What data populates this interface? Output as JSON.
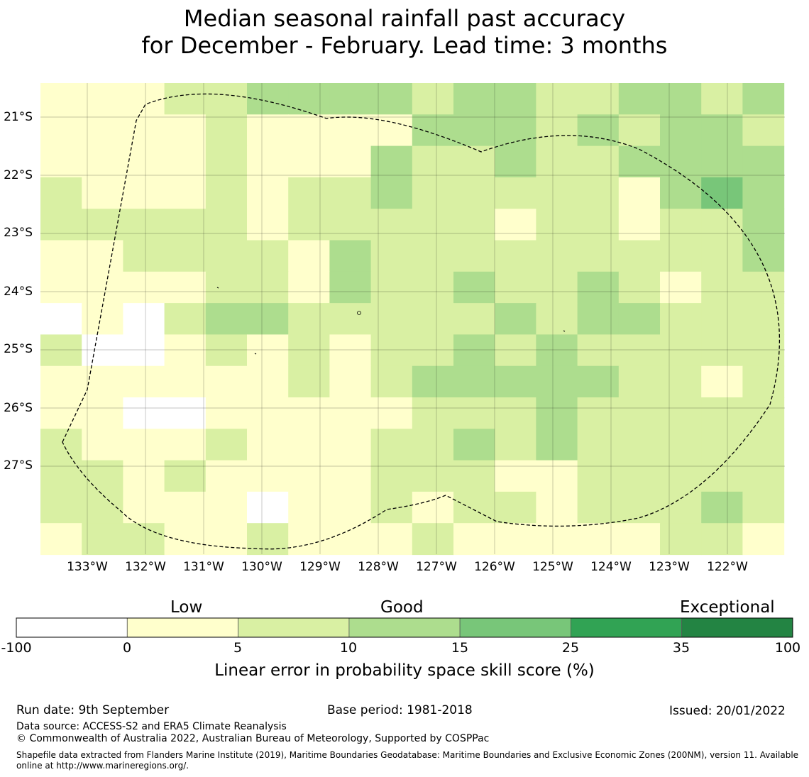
{
  "title": {
    "line1": "Median seasonal rainfall past accuracy",
    "line2": "for December - February. Lead time: 3 months"
  },
  "map": {
    "lat_labels": [
      "21°S",
      "22°S",
      "23°S",
      "24°S",
      "25°S",
      "26°S",
      "27°S"
    ],
    "lon_labels": [
      "133°W",
      "132°W",
      "131°W",
      "130°W",
      "129°W",
      "128°W",
      "127°W",
      "126°W",
      "125°W",
      "124°W",
      "123°W",
      "122°W"
    ],
    "grid_rows": [
      "1 1 1 2 2 3 3 3 3 2 3 3 2 2 3 3 2 3",
      "1 1 1 1 2 1 1 1 1 3 3 3 2 3 2 3 3 2",
      "1 1 1 1 2 1 1 1 3 2 2 3 2 2 3 3 3 3",
      "2 1 1 1 2 1 2 2 3 2 2 2 2 2 1 3 4 3",
      "2 2 2 2 2 1 2 2 2 2 2 1 2 2 1 2 2 3",
      "1 1 2 2 2 2 1 3 2 2 2 2 2 2 2 2 2 3",
      "1 1 1 1 2 2 1 3 2 2 3 2 2 3 2 1 2 2",
      "0 1 0 2 3 3 2 2 2 2 2 3 2 3 3 2 2 2",
      "2 0 0 1 2 1 2 1 2 2 3 2 3 2 2 2 2 2",
      "1 1 1 1 1 1 2 1 2 3 3 3 3 3 2 2 1 2",
      "1 1 0 0 1 1 1 1 1 2 2 2 3 2 2 2 2 2",
      "2 1 1 1 2 1 1 1 2 2 3 2 3 2 2 2 2 2",
      "2 2 1 2 1 1 1 1 2 2 2 1 1 2 2 2 2 2",
      "2 2 1 1 1 0 1 1 2 1 2 2 1 2 2 2 3 2",
      "1 2 2 1 1 2 1 1 1 2 1 1 1 1 1 2 2 1"
    ],
    "grid_last_row_note": "",
    "color_map": {
      "0": "#ffffff",
      "1": "#ffffcc",
      "2": "#d9f0a3",
      "3": "#addd8e",
      "4": "#78c679",
      "5": "#31a354",
      "6": "#238443"
    }
  },
  "colorbar": {
    "categories": [
      "Low",
      "Good",
      "Exceptional"
    ],
    "ticks": [
      "-100",
      "0",
      "5",
      "10",
      "15",
      "25",
      "35",
      "100"
    ],
    "colors": [
      "#ffffff",
      "#ffffcc",
      "#d9f0a3",
      "#addd8e",
      "#78c679",
      "#31a354",
      "#238443"
    ],
    "title": "Linear error in probability space skill score (%)"
  },
  "footer": {
    "run_date": "Run date: 9th September",
    "base_period": "Base period: 1981-2018",
    "issued": "Issued: 20/01/2022",
    "data_source": "Data source: ACCESS-S2 and ERA5 Climate Reanalysis",
    "copyright": "© Commonwealth of Australia 2022, Australian Bureau of Meteorology, Supported by COSPPac",
    "shapefile": "Shapefile data extracted from Flanders Marine Institute (2019), Maritime Boundaries Geodatabase: Maritime Boundaries and Exclusive Economic Zones (200NM), version 11. Available online at http://www.marineregions.org/."
  }
}
